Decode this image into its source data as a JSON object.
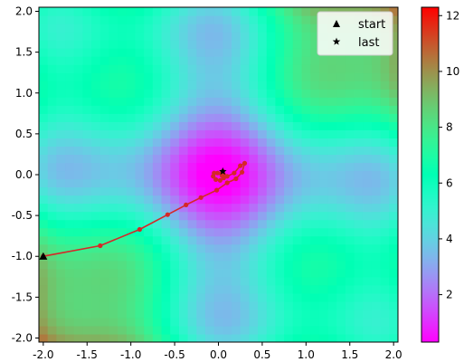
{
  "chart_data": {
    "type": "heatmap",
    "title": "",
    "xlabel": "",
    "ylabel": "",
    "xlim": [
      -2.05,
      2.05
    ],
    "ylim": [
      -2.05,
      2.05
    ],
    "x_ticks": [
      "-2.0",
      "-1.5",
      "-1.0",
      "-0.5",
      "0.0",
      "0.5",
      "1.0",
      "1.5",
      "2.0"
    ],
    "y_ticks": [
      "2.0",
      "1.5",
      "1.0",
      "0.5",
      "0.0",
      "-0.5",
      "-1.0",
      "-1.5",
      "-2.0"
    ],
    "colorbar": {
      "colormap": "rainbow",
      "range": [
        0.3,
        12.3
      ],
      "ticks": [
        "2",
        "4",
        "6",
        "8",
        "10",
        "12"
      ]
    },
    "grid": false,
    "legend_placement": "top-right",
    "legend": [
      {
        "label": "start",
        "marker": "triangle",
        "color": "#000000"
      },
      {
        "label": "last",
        "marker": "star",
        "color": "#000000"
      }
    ],
    "trajectory": {
      "color": "#d62728",
      "points": [
        [
          -2.0,
          -1.0
        ],
        [
          -1.35,
          -0.87
        ],
        [
          -0.9,
          -0.67
        ],
        [
          -0.58,
          -0.49
        ],
        [
          -0.37,
          -0.37
        ],
        [
          -0.2,
          -0.28
        ],
        [
          -0.02,
          -0.19
        ],
        [
          0.1,
          -0.1
        ],
        [
          0.2,
          -0.05
        ],
        [
          0.27,
          0.03
        ],
        [
          0.3,
          0.14
        ],
        [
          0.25,
          0.11
        ],
        [
          0.18,
          0.02
        ],
        [
          0.1,
          -0.02
        ],
        [
          0.04,
          -0.01
        ],
        [
          -0.01,
          0.02
        ],
        [
          -0.05,
          0.02
        ],
        [
          -0.06,
          -0.02
        ],
        [
          -0.03,
          -0.06
        ],
        [
          0.02,
          -0.07
        ],
        [
          0.06,
          -0.04
        ],
        [
          0.06,
          0.0
        ],
        [
          0.04,
          0.02
        ],
        [
          0.05,
          0.04
        ]
      ]
    },
    "start_point": [
      -2.0,
      -1.0
    ],
    "last_point": [
      0.05,
      0.04
    ]
  }
}
